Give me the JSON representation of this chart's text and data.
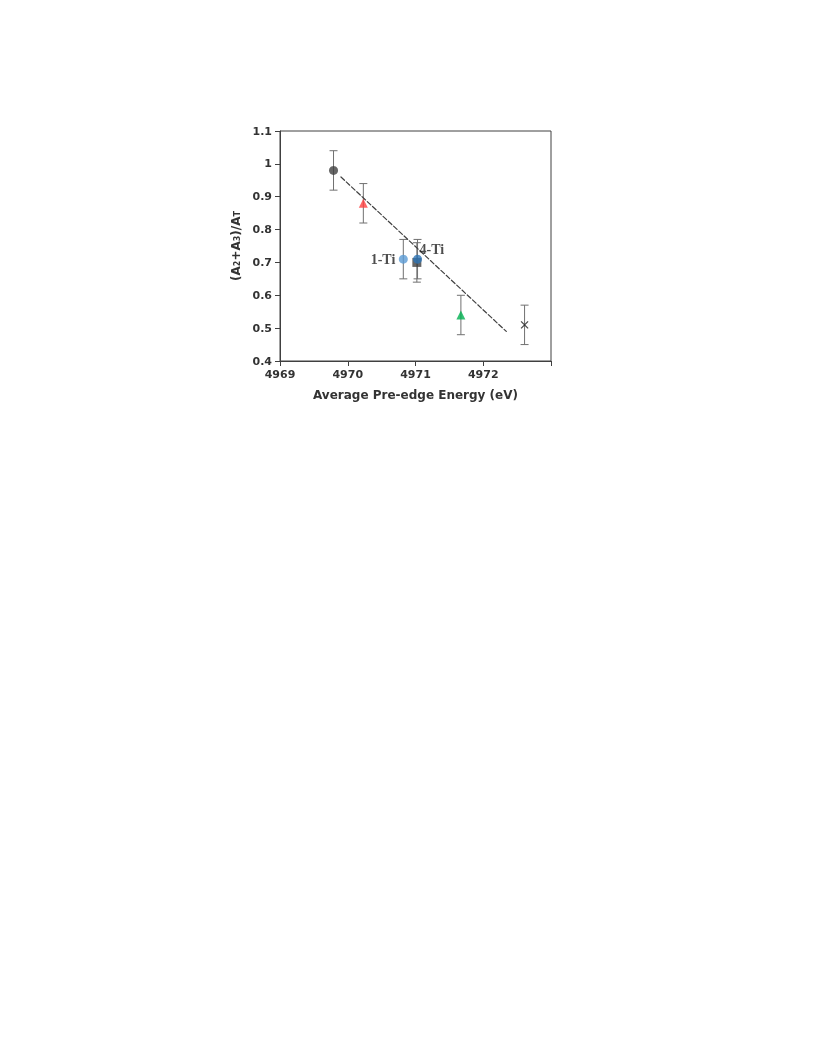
{
  "chart_data": {
    "type": "scatter",
    "xlabel": "Average Pre-edge Energy (eV)",
    "ylabel": "(A$_{2}$+A$_{3}$)/A$_{T}$",
    "xlim": [
      4969,
      4973
    ],
    "xticks": [
      4969,
      4970,
      4971,
      4972,
      {
        "value": 4973,
        "label": null
      }
    ],
    "ylim": [
      0.4,
      1.1
    ],
    "yticks": [
      0.4,
      0.5,
      0.6,
      0.7,
      0.8,
      0.9,
      1,
      1.1
    ],
    "grid": false,
    "series": [
      {
        "x": [
          4969.79
        ],
        "values": [
          0.98
        ],
        "errors": [
          0.06
        ],
        "color": "#404040",
        "marker": "circle"
      },
      {
        "x": [
          4970.23
        ],
        "values": [
          0.88
        ],
        "errors": [
          0.06
        ],
        "color": "#ff4040",
        "marker": "triangle"
      },
      {
        "x": [
          4970.82
        ],
        "values": [
          0.71
        ],
        "errors": [
          0.06
        ],
        "color": "#5b9bd5",
        "marker": "circle"
      },
      {
        "x": [
          4971.02
        ],
        "values": [
          0.7
        ],
        "errors": [
          0.06
        ],
        "color": "#404040",
        "marker": "square"
      },
      {
        "x": [
          4971.03
        ],
        "values": [
          0.71
        ],
        "errors": [
          0.06
        ],
        "color": "#2e75b6",
        "marker": "circle"
      },
      {
        "x": [
          4971.67
        ],
        "values": [
          0.54
        ],
        "errors": [
          0.06
        ],
        "color": "#00b050",
        "marker": "triangle"
      },
      {
        "x": [
          4972.61
        ],
        "values": [
          0.51
        ],
        "errors": [
          0.06
        ],
        "color": "#202020",
        "marker": "cross"
      },
      {
        "type": "line",
        "x": [
          4969.9,
          4972.34
        ],
        "values": [
          0.96,
          0.49
        ],
        "color": "#404040",
        "line_style": "dashed",
        "marker": "none"
      }
    ],
    "annotations": [
      {
        "text": "1-Ti",
        "x": 4970.82,
        "y": 0.71
      },
      {
        "text": "4-Ti",
        "x": 4971.03,
        "y": 0.71
      }
    ]
  }
}
